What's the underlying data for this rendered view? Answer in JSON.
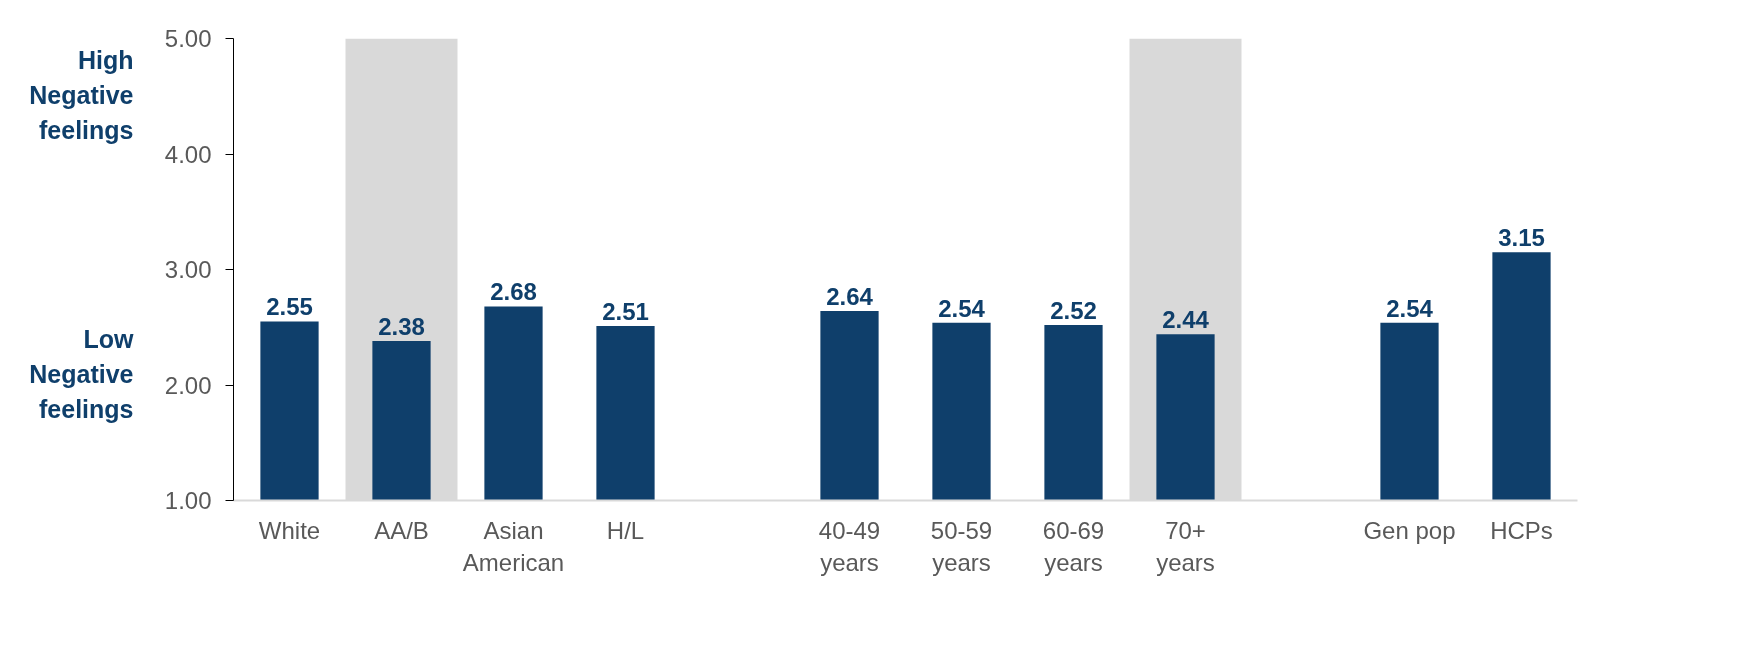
{
  "chart_data": {
    "type": "bar",
    "categories": [
      "White",
      "AA/B",
      "Asian\nAmerican",
      "H/L",
      null,
      "40-49\nyears",
      "50-59\nyears",
      "60-69\nyears",
      "70+\nyears",
      null,
      "Gen pop",
      "HCPs"
    ],
    "values": [
      2.55,
      2.38,
      2.68,
      2.51,
      null,
      2.64,
      2.54,
      2.52,
      2.44,
      null,
      2.54,
      3.15
    ],
    "color": "#0f3f6b",
    "ylim": [
      1,
      5
    ],
    "yticks": [
      {
        "value": 1,
        "label": "1.00"
      },
      {
        "value": 2,
        "label": "2.00"
      },
      {
        "value": 3,
        "label": "3.00"
      },
      {
        "value": 4,
        "label": "4.00"
      },
      {
        "value": 5,
        "label": "5.00"
      }
    ],
    "data_labels": true,
    "grid": false,
    "bands": [
      {
        "axis": "x",
        "from": "AA/B",
        "to": "AA/B",
        "color": "#d9d9d9"
      },
      {
        "axis": "x",
        "from": "70+\nyears",
        "to": "70+\nyears",
        "color": "#d9d9d9"
      }
    ],
    "annotations": [
      "High\nNegative\nfeelings",
      "Low\nNegative\nfeelings"
    ]
  }
}
